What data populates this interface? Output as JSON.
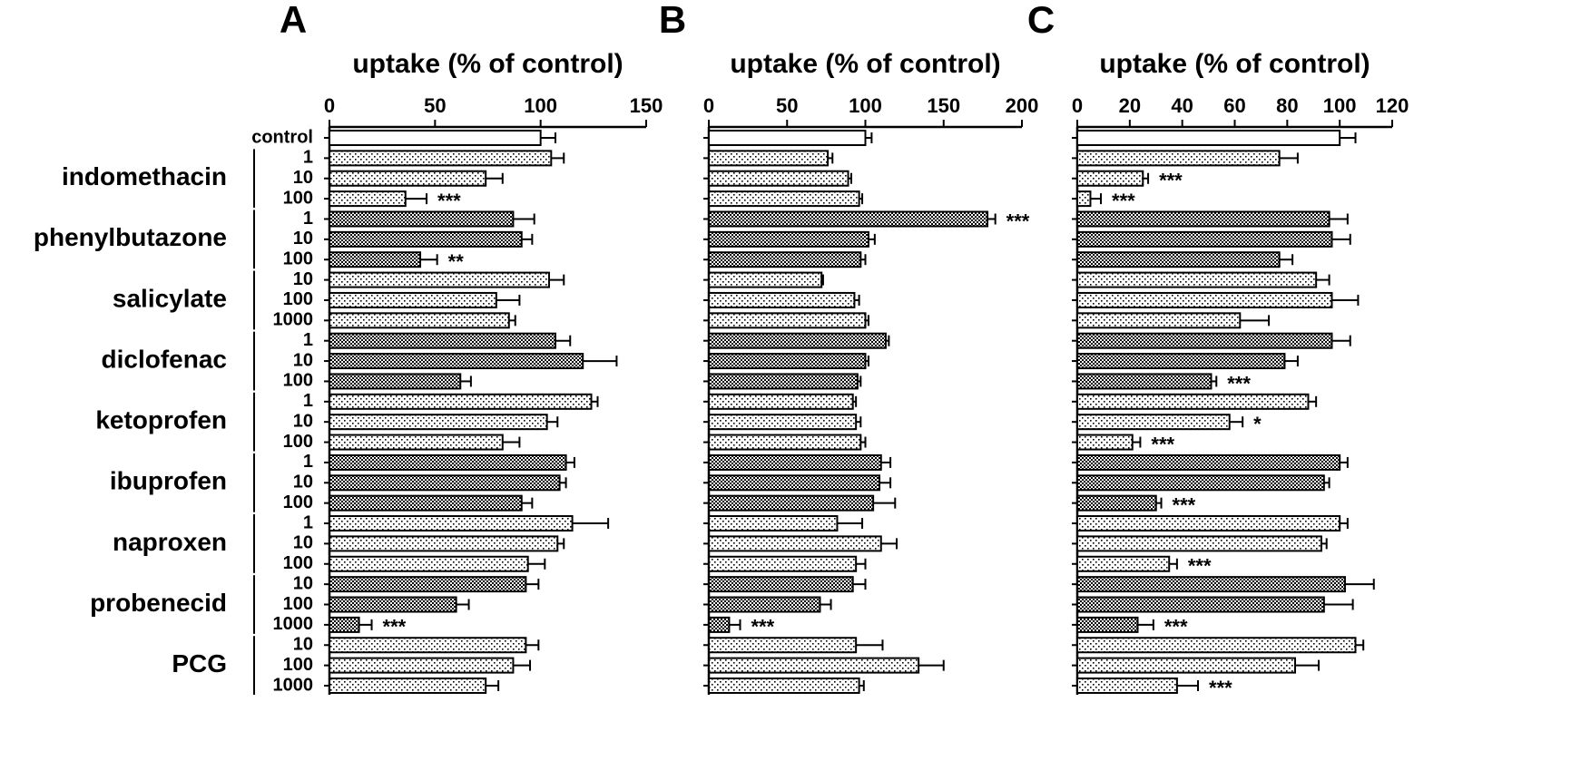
{
  "rows": {
    "control": "control",
    "groups": [
      {
        "name": "indomethacin",
        "doses": [
          "1",
          "10",
          "100"
        ],
        "pattern": "dots"
      },
      {
        "name": "phenylbutazone",
        "doses": [
          "1",
          "10",
          "100"
        ],
        "pattern": "checker"
      },
      {
        "name": "salicylate",
        "doses": [
          "10",
          "100",
          "1000"
        ],
        "pattern": "dots"
      },
      {
        "name": "diclofenac",
        "doses": [
          "1",
          "10",
          "100"
        ],
        "pattern": "checker"
      },
      {
        "name": "ketoprofen",
        "doses": [
          "1",
          "10",
          "100"
        ],
        "pattern": "dots"
      },
      {
        "name": "ibuprofen",
        "doses": [
          "1",
          "10",
          "100"
        ],
        "pattern": "checker"
      },
      {
        "name": "naproxen",
        "doses": [
          "1",
          "10",
          "100"
        ],
        "pattern": "dots"
      },
      {
        "name": "probenecid",
        "doses": [
          "10",
          "100",
          "1000"
        ],
        "pattern": "checker"
      },
      {
        "name": "PCG",
        "doses": [
          "10",
          "100",
          "1000"
        ],
        "pattern": "dots"
      }
    ]
  },
  "chart_data": [
    {
      "type": "bar",
      "title": "A",
      "xlabel": "uptake (% of control)",
      "xlim": [
        0,
        150
      ],
      "xticks": [
        0,
        50,
        100,
        150
      ],
      "values": [
        100,
        105,
        74,
        36,
        87,
        91,
        43,
        104,
        79,
        85,
        107,
        120,
        62,
        124,
        103,
        82,
        112,
        109,
        91,
        115,
        108,
        94,
        93,
        60,
        14,
        93,
        87,
        74
      ],
      "errors": [
        7,
        6,
        8,
        10,
        10,
        5,
        8,
        7,
        11,
        3,
        7,
        16,
        5,
        3,
        5,
        8,
        4,
        3,
        5,
        17,
        3,
        8,
        6,
        6,
        6,
        6,
        8,
        6
      ],
      "significance": [
        null,
        null,
        null,
        "***",
        null,
        null,
        "**",
        null,
        null,
        null,
        null,
        null,
        null,
        null,
        null,
        null,
        null,
        null,
        null,
        null,
        null,
        null,
        null,
        null,
        "***",
        null,
        null,
        null
      ]
    },
    {
      "type": "bar",
      "title": "B",
      "xlabel": "uptake (% of control)",
      "xlim": [
        0,
        200
      ],
      "xticks": [
        0,
        50,
        100,
        150,
        200
      ],
      "values": [
        100,
        76,
        89,
        96,
        178,
        102,
        97,
        72,
        93,
        100,
        113,
        100,
        95,
        92,
        94,
        97,
        110,
        109,
        105,
        82,
        110,
        94,
        92,
        71,
        13,
        94,
        134,
        96
      ],
      "errors": [
        4,
        3,
        2,
        2,
        5,
        4,
        3,
        1,
        3,
        2,
        2,
        2,
        2,
        2,
        3,
        3,
        6,
        7,
        14,
        16,
        10,
        6,
        8,
        7,
        7,
        17,
        16,
        3
      ],
      "significance": [
        null,
        null,
        null,
        null,
        "***",
        null,
        null,
        null,
        null,
        null,
        null,
        null,
        null,
        null,
        null,
        null,
        null,
        null,
        null,
        null,
        null,
        null,
        null,
        null,
        "***",
        null,
        null,
        null
      ]
    },
    {
      "type": "bar",
      "title": "C",
      "xlabel": "uptake (% of control)",
      "xlim": [
        0,
        120
      ],
      "xticks": [
        0,
        20,
        40,
        60,
        80,
        100,
        120
      ],
      "values": [
        100,
        77,
        25,
        5,
        96,
        97,
        77,
        91,
        97,
        62,
        97,
        79,
        51,
        88,
        58,
        21,
        100,
        94,
        30,
        100,
        93,
        35,
        102,
        94,
        23,
        106,
        83,
        38
      ],
      "errors": [
        6,
        7,
        2,
        4,
        7,
        7,
        5,
        5,
        10,
        11,
        7,
        5,
        2,
        3,
        5,
        3,
        3,
        2,
        2,
        3,
        2,
        3,
        11,
        11,
        6,
        3,
        9,
        8
      ],
      "significance": [
        null,
        null,
        "***",
        "***",
        null,
        null,
        null,
        null,
        null,
        null,
        null,
        null,
        "***",
        null,
        "*",
        "***",
        null,
        null,
        "***",
        null,
        null,
        "***",
        null,
        null,
        "***",
        null,
        null,
        "***"
      ]
    }
  ]
}
